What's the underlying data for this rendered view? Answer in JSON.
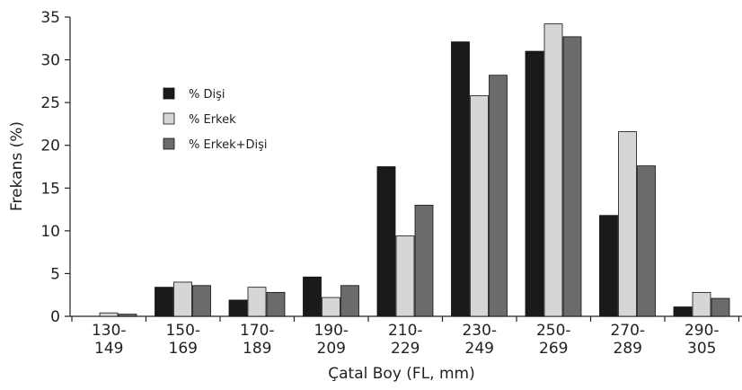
{
  "chart_data": {
    "type": "bar",
    "xlabel": "Çatal Boy (FL, mm)",
    "ylabel": "Frekans (%)",
    "ylim": [
      0,
      35
    ],
    "yticks": [
      0,
      5,
      10,
      15,
      20,
      25,
      30,
      35
    ],
    "categories": [
      [
        "130-",
        "149"
      ],
      [
        "150-",
        "169"
      ],
      [
        "170-",
        "189"
      ],
      [
        "190-",
        "209"
      ],
      [
        "210-",
        "229"
      ],
      [
        "230-",
        "249"
      ],
      [
        "250-",
        "269"
      ],
      [
        "270-",
        "289"
      ],
      [
        "290-",
        "305"
      ]
    ],
    "series": [
      {
        "name": "% Dişi",
        "color": "#1a1a1a",
        "values": [
          0,
          3.4,
          1.9,
          4.6,
          17.5,
          32.1,
          31.0,
          11.8,
          1.1
        ]
      },
      {
        "name": "% Erkek",
        "color": "#d6d6d6",
        "values": [
          0.4,
          4.0,
          3.4,
          2.2,
          9.4,
          25.8,
          34.2,
          21.6,
          2.8
        ]
      },
      {
        "name": "% Erkek+Dişi",
        "color": "#6b6b6b",
        "values": [
          0.25,
          3.6,
          2.8,
          3.6,
          13.0,
          28.2,
          32.7,
          17.6,
          2.1
        ]
      }
    ],
    "legend_position": "upper-left",
    "grid": false
  }
}
